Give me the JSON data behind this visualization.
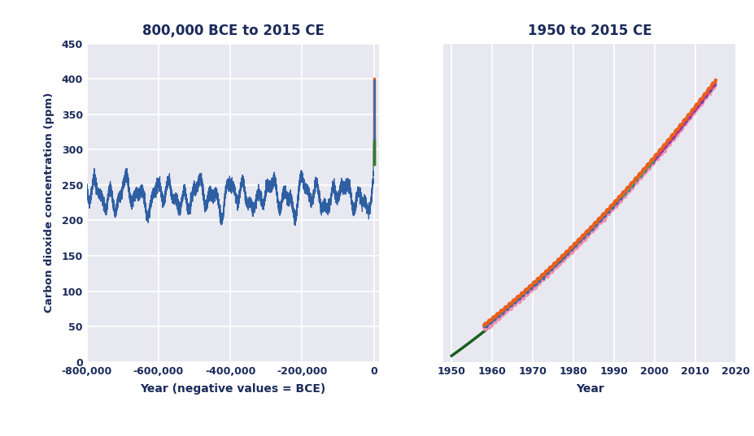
{
  "title_left": "800,000 BCE to 2015 CE",
  "title_right": "1950 to 2015 CE",
  "ylabel": "Carbon dioxide concentration (ppm)",
  "xlabel_left": "Year (negative values = BCE)",
  "xlabel_right": "Year",
  "xlim_left": [
    -800000,
    15000
  ],
  "ylim_left": [
    0,
    450
  ],
  "xlim_right": [
    1948,
    2020
  ],
  "ylim_right": [
    308,
    412
  ],
  "yticks_left": [
    0,
    50,
    100,
    150,
    200,
    250,
    300,
    350,
    400,
    450
  ],
  "xticks_left": [
    -800000,
    -600000,
    -400000,
    -200000,
    0
  ],
  "xtick_labels_left": [
    "-800,000",
    "-600,000",
    "-400,000",
    "-200,000",
    "0"
  ],
  "xticks_right": [
    1950,
    1960,
    1970,
    1980,
    1990,
    2000,
    2010,
    2020
  ],
  "bg_color": "#e8e8f0",
  "line_color_ice": "#2e5fa3",
  "title_color": "#1a2a5a",
  "grid_color": "#d0d0d8",
  "line_color_orange": "#e8601c",
  "line_color_green": "#4caf50",
  "line_color_blue": "#3a6bad",
  "line_color_pink": "#f48fb1",
  "line_color_purple": "#9c27b0"
}
